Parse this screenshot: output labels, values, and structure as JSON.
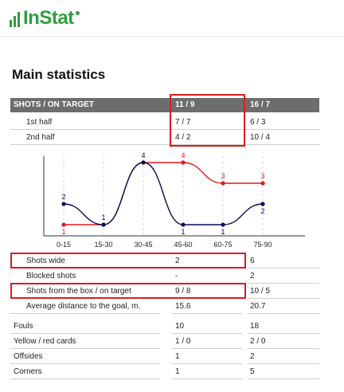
{
  "logo": {
    "text": "InStat"
  },
  "title": "Main statistics",
  "header": {
    "label": "SHOTS / ON TARGET",
    "team1": "11 / 9",
    "team2": "16 / 7"
  },
  "halves": [
    {
      "label": "1st half",
      "team1": "7 / 7",
      "team2": "6 / 3"
    },
    {
      "label": "2nd half",
      "team1": "4 / 2",
      "team2": "10 / 4"
    }
  ],
  "chart_data": {
    "type": "line",
    "x": [
      "0-15",
      "15-30",
      "30-45",
      "45-60",
      "60-75",
      "75-90"
    ],
    "series": [
      {
        "color": "#0c0c5a",
        "values": [
          2,
          1,
          4,
          1,
          1,
          2
        ]
      },
      {
        "color": "#e0191f",
        "values": [
          1,
          1,
          4,
          4,
          3,
          3
        ]
      }
    ],
    "ylim": [
      1,
      4
    ]
  },
  "shot_stats": [
    {
      "label": "Shots wide",
      "team1": "2",
      "team2": "6"
    },
    {
      "label": "Blocked shots",
      "team1": "-",
      "team2": "2"
    },
    {
      "label": "Shots from the box / on target",
      "team1": "9 / 8",
      "team2": "10 / 5"
    },
    {
      "label": "Average distance to the goal, m.",
      "team1": "15.6",
      "team2": "20.7"
    }
  ],
  "other_stats": [
    {
      "label": "Fouls",
      "team1": "10",
      "team2": "18"
    },
    {
      "label": "Yellow / red cards",
      "team1": "1 / 0",
      "team2": "2 / 0"
    },
    {
      "label": "Offsides",
      "team1": "1",
      "team2": "2"
    },
    {
      "label": "Corners",
      "team1": "1",
      "team2": "5"
    }
  ],
  "colors": {
    "brand": "#2e9e3e",
    "highlight": "#e0191f",
    "header_bg": "#6d6d6d"
  }
}
